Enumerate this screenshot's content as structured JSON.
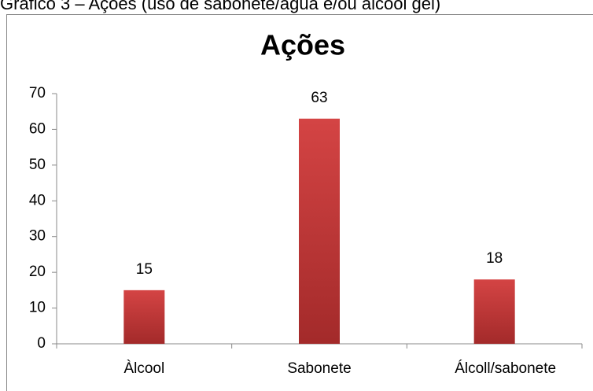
{
  "caption": "Gráfico 3 – Ações (uso de sabonete/água e/ou álcool gel)",
  "chart_data": {
    "type": "bar",
    "title": "Ações",
    "categories": [
      "Àlcool",
      "Sabonete",
      "Álcoll/sabonete"
    ],
    "values": [
      15,
      63,
      18
    ],
    "color": "#c83a3a",
    "ylim": [
      0,
      70
    ],
    "yticks": [
      0,
      10,
      20,
      30,
      40,
      50,
      60,
      70
    ],
    "grid": false
  }
}
